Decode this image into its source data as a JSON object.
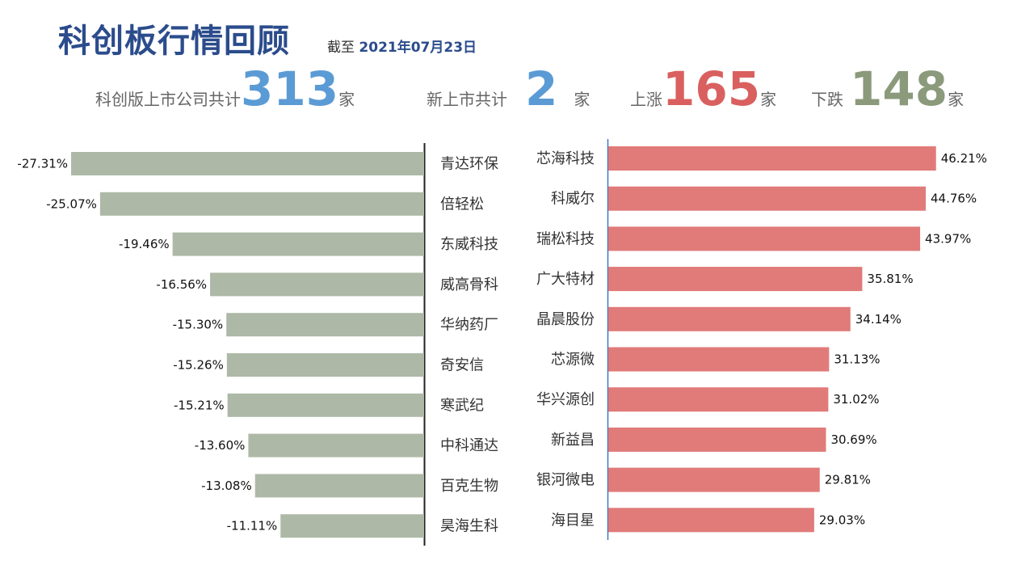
{
  "header": {
    "title": "科创板行情回顾",
    "asof_prefix": "截至",
    "asof_date": "2021年07月23日"
  },
  "stats": {
    "total": {
      "label": "科创版上市公司共计",
      "value": "313",
      "unit": "家"
    },
    "new": {
      "label": "新上市共计",
      "value": "2",
      "unit": "家"
    },
    "up": {
      "label": "上涨",
      "value": "165",
      "unit": "家"
    },
    "down": {
      "label": "下跌",
      "value": "148",
      "unit": "家"
    }
  },
  "colors": {
    "loss_bar": "#adb9a6",
    "gain_bar": "#e07b79",
    "title": "#2b4c8c",
    "blue_number": "#5b9bd5",
    "red_number": "#d9605f",
    "green_number": "#8a9a7b"
  },
  "chart_data": [
    {
      "type": "bar",
      "orientation": "horizontal",
      "direction": "leftward",
      "unit": "%",
      "categories": [
        "青达环保",
        "倍轻松",
        "东威科技",
        "威高骨科",
        "华纳药厂",
        "奇安信",
        "寒武纪",
        "中科通达",
        "百克生物",
        "昊海生科"
      ],
      "values": [
        -27.31,
        -25.07,
        -19.46,
        -16.56,
        -15.3,
        -15.26,
        -15.21,
        -13.6,
        -13.08,
        -11.11
      ],
      "labels": [
        "-27.31%",
        "-25.07%",
        "-19.46%",
        "-16.56%",
        "-15.30%",
        "-15.26%",
        "-15.21%",
        "-13.60%",
        "-13.08%",
        "-11.11%"
      ],
      "bar_color": "#adb9a6"
    },
    {
      "type": "bar",
      "orientation": "horizontal",
      "direction": "rightward",
      "unit": "%",
      "categories": [
        "芯海科技",
        "科威尔",
        "瑞松科技",
        "广大特材",
        "晶晨股份",
        "芯源微",
        "华兴源创",
        "新益昌",
        "银河微电",
        "海目星"
      ],
      "values": [
        46.21,
        44.76,
        43.97,
        35.81,
        34.14,
        31.13,
        31.02,
        30.69,
        29.81,
        29.03
      ],
      "labels": [
        "46.21%",
        "44.76%",
        "43.97%",
        "35.81%",
        "34.14%",
        "31.13%",
        "31.02%",
        "30.69%",
        "29.81%",
        "29.03%"
      ],
      "bar_color": "#e07b79"
    }
  ]
}
